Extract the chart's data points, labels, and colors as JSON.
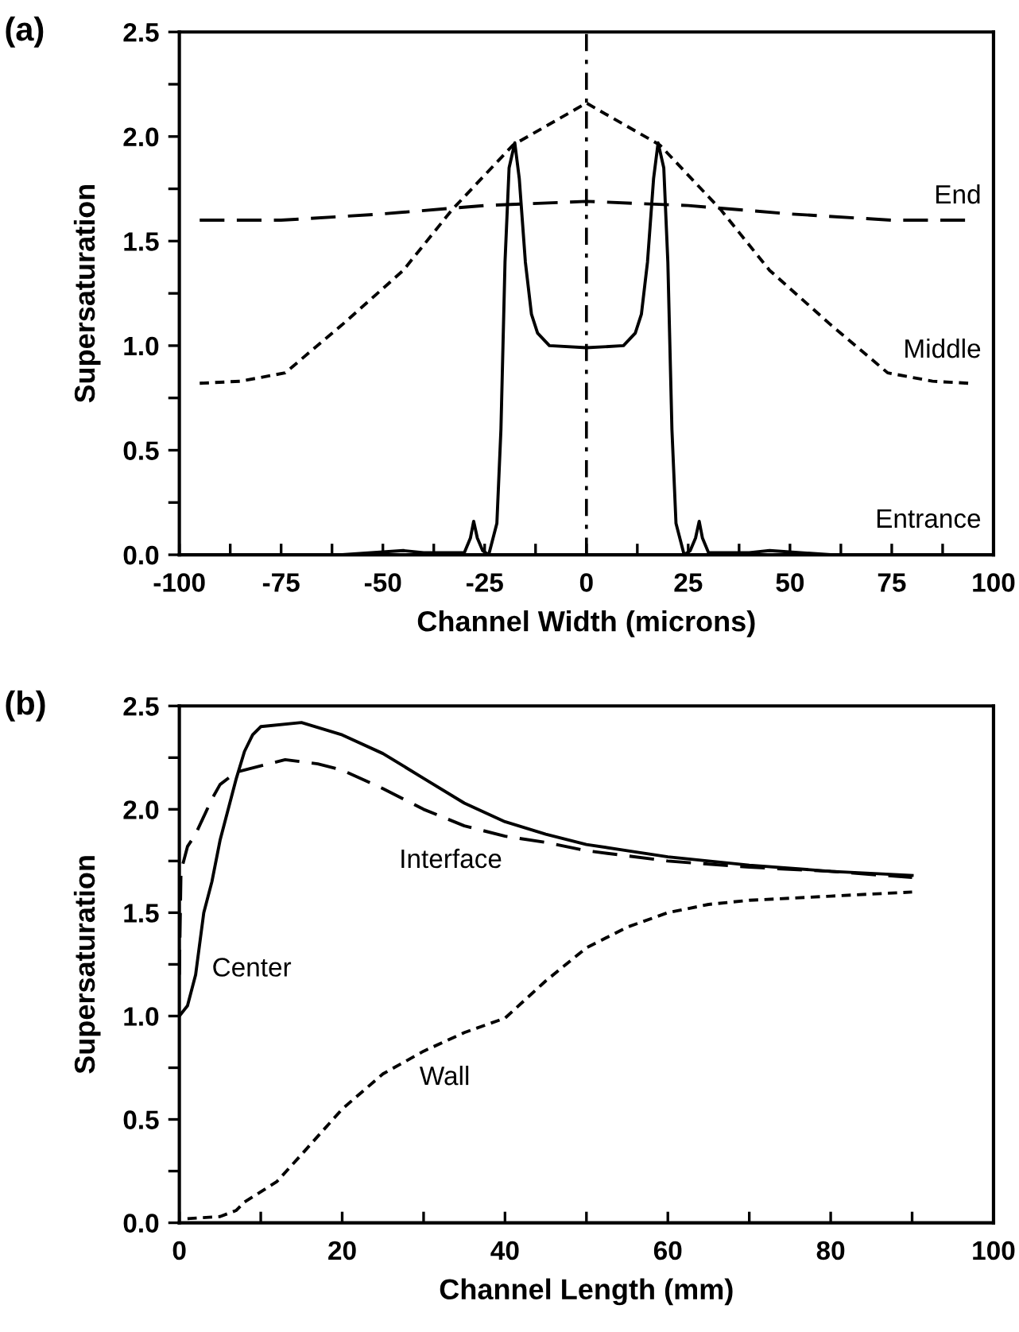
{
  "chart_data": [
    {
      "type": "line",
      "xlabel": "Channel Width (microns)",
      "ylabel": "Supersaturation",
      "xlim": [
        -100,
        100
      ],
      "xticks": [
        -100,
        {
          "value": -87.5,
          "label": null
        },
        -75,
        {
          "value": -62.5,
          "label": null
        },
        -50,
        {
          "value": -37.5,
          "label": null
        },
        -25,
        {
          "value": -12.5,
          "label": null
        },
        0,
        {
          "value": 12.5,
          "label": null
        },
        25,
        {
          "value": 37.5,
          "label": null
        },
        50,
        {
          "value": 62.5,
          "label": null
        },
        75,
        {
          "value": 87.5,
          "label": null
        },
        100
      ],
      "ylim": [
        0,
        2.5
      ],
      "yticks": [
        {
          "value": 0,
          "label": "0.0"
        },
        {
          "value": 0.25,
          "label": null
        },
        0.5,
        {
          "value": 0.75,
          "label": null
        },
        {
          "value": 1,
          "label": "1.0"
        },
        {
          "value": 1.25,
          "label": null
        },
        1.5,
        {
          "value": 1.75,
          "label": null
        },
        {
          "value": 2,
          "label": "2.0"
        },
        {
          "value": 2.25,
          "label": null
        },
        2.5
      ],
      "grid": false,
      "legend": false,
      "series": [
        {
          "name": "Entrance",
          "color": "#000000",
          "line_style": "solid",
          "x": [
            -95,
            -60,
            -45,
            -40,
            -30,
            -28.5,
            -27.7,
            -26.8,
            -25.5,
            -24,
            -22,
            -21,
            -20,
            -19,
            -17.6,
            -16.5,
            -15,
            -13.5,
            -12,
            -9.1,
            0,
            9.1,
            12,
            13.5,
            15,
            16.5,
            17.6,
            19,
            20,
            21,
            22,
            24,
            25.5,
            26.8,
            27.7,
            28.5,
            30,
            40,
            45,
            60,
            95
          ],
          "values": [
            0.0,
            0.0,
            0.02,
            0.01,
            0.01,
            0.08,
            0.16,
            0.08,
            0.02,
            0.0,
            0.15,
            0.6,
            1.4,
            1.85,
            1.97,
            1.8,
            1.4,
            1.15,
            1.06,
            1.0,
            0.99,
            1.0,
            1.06,
            1.15,
            1.4,
            1.8,
            1.97,
            1.85,
            1.4,
            0.6,
            0.15,
            0.0,
            0.02,
            0.08,
            0.16,
            0.08,
            0.01,
            0.01,
            0.02,
            0.0,
            0.0
          ]
        },
        {
          "name": "Middle",
          "color": "#000000",
          "line_style": "dotted",
          "x": [
            -95,
            -85,
            -74,
            -60,
            -45,
            -33,
            -18,
            0,
            18,
            33,
            45,
            60,
            74,
            85,
            94
          ],
          "values": [
            0.82,
            0.83,
            0.87,
            1.1,
            1.36,
            1.65,
            1.96,
            2.16,
            1.96,
            1.65,
            1.36,
            1.1,
            0.87,
            0.83,
            0.82
          ]
        },
        {
          "name": "End",
          "color": "#000000",
          "line_style": "dashed",
          "x": [
            -95,
            -75,
            -50,
            -25,
            0,
            25,
            50,
            75,
            94
          ],
          "values": [
            1.6,
            1.6,
            1.63,
            1.67,
            1.69,
            1.67,
            1.63,
            1.6,
            1.6
          ]
        }
      ],
      "ref_lines": [
        {
          "axis": "x",
          "value": 0,
          "color": "#000000",
          "line_style": "dashdot"
        }
      ],
      "annotations": [
        "(a)"
      ]
    },
    {
      "type": "line",
      "xlabel": "Channel Length (mm)",
      "ylabel": "Supersaturation",
      "xlim": [
        0,
        100
      ],
      "xticks": [
        0,
        {
          "value": 10,
          "label": null
        },
        20,
        {
          "value": 30,
          "label": null
        },
        40,
        {
          "value": 50,
          "label": null
        },
        60,
        {
          "value": 70,
          "label": null
        },
        80,
        {
          "value": 90,
          "label": null
        },
        100
      ],
      "ylim": [
        0,
        2.5
      ],
      "yticks": [
        {
          "value": 0,
          "label": "0.0"
        },
        {
          "value": 0.25,
          "label": null
        },
        0.5,
        {
          "value": 0.75,
          "label": null
        },
        {
          "value": 1,
          "label": "1.0"
        },
        {
          "value": 1.25,
          "label": null
        },
        1.5,
        {
          "value": 1.75,
          "label": null
        },
        {
          "value": 2,
          "label": "2.0"
        },
        {
          "value": 2.25,
          "label": null
        },
        2.5
      ],
      "grid": false,
      "legend": false,
      "series": [
        {
          "name": "Center",
          "color": "#000000",
          "line_style": "solid",
          "x": [
            0,
            1,
            2,
            3,
            4,
            5,
            6,
            7,
            8,
            9,
            10,
            15,
            20,
            25,
            30,
            35,
            40,
            45,
            50,
            55,
            60,
            65,
            70,
            80,
            90
          ],
          "values": [
            1.0,
            1.05,
            1.2,
            1.5,
            1.65,
            1.85,
            2.0,
            2.15,
            2.28,
            2.36,
            2.4,
            2.42,
            2.36,
            2.27,
            2.15,
            2.03,
            1.94,
            1.88,
            1.83,
            1.8,
            1.77,
            1.75,
            1.73,
            1.7,
            1.68
          ]
        },
        {
          "name": "Interface",
          "color": "#000000",
          "line_style": "dashed",
          "x": [
            0,
            0.2,
            1,
            2,
            4,
            5,
            7,
            10,
            13,
            17,
            20,
            25,
            30,
            35,
            40,
            45,
            50,
            60,
            70,
            80,
            90
          ],
          "values": [
            1.2,
            1.7,
            1.82,
            1.88,
            2.05,
            2.12,
            2.18,
            2.21,
            2.24,
            2.22,
            2.19,
            2.1,
            2.0,
            1.92,
            1.87,
            1.84,
            1.8,
            1.75,
            1.72,
            1.7,
            1.67
          ]
        },
        {
          "name": "Wall",
          "color": "#000000",
          "line_style": "dotted",
          "x": [
            1,
            5,
            7,
            8,
            10,
            12,
            15,
            20,
            25,
            30,
            35,
            40,
            45,
            50,
            55,
            60,
            65,
            70,
            80,
            90
          ],
          "values": [
            0.02,
            0.03,
            0.06,
            0.1,
            0.15,
            0.2,
            0.33,
            0.55,
            0.72,
            0.83,
            0.92,
            0.99,
            1.17,
            1.33,
            1.43,
            1.5,
            1.54,
            1.56,
            1.58,
            1.6
          ]
        }
      ],
      "annotations": [
        "(b)"
      ]
    }
  ]
}
